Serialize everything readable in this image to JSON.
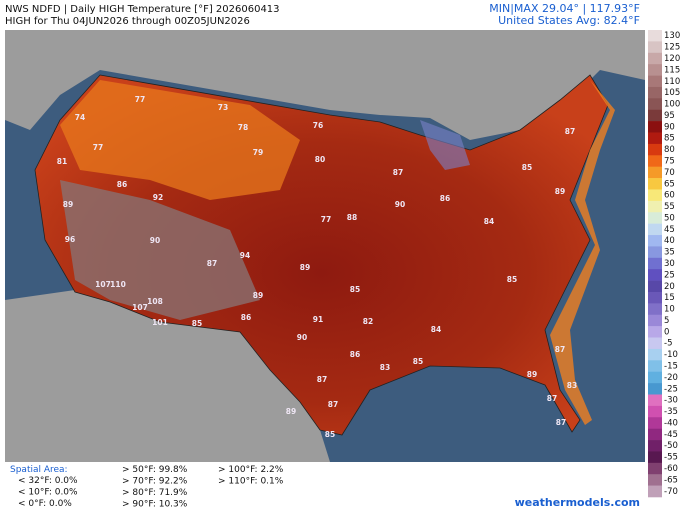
{
  "header": {
    "left_lines": [
      "NWS NDFD | Daily HIGH Temperature [°F]  2026060413",
      "HIGH for Thu 04JUN2026 through 00Z05JUN2026"
    ],
    "right_lines": [
      "MIN|MAX 29.04° | 117.93°F",
      "United States Avg: 82.4°F"
    ]
  },
  "colorbar": {
    "ticks": [
      130,
      125,
      120,
      115,
      110,
      105,
      100,
      95,
      90,
      85,
      80,
      75,
      70,
      65,
      60,
      55,
      50,
      45,
      40,
      35,
      30,
      25,
      20,
      15,
      10,
      5,
      0,
      -5,
      -10,
      -15,
      -20,
      -25,
      -30,
      -35,
      -40,
      -45,
      -50,
      -55,
      -60,
      -65,
      -70
    ],
    "colors": [
      "#e8dcdc",
      "#d8c4c4",
      "#c8a8a8",
      "#b89090",
      "#a87878",
      "#986666",
      "#8a5555",
      "#7a3a3a",
      "#8b1010",
      "#b01a10",
      "#d83a10",
      "#f06818",
      "#f59a28",
      "#f8c840",
      "#f8e878",
      "#f0f0b0",
      "#d8ecd8",
      "#c0d8f0",
      "#a0b8f0",
      "#8898e0",
      "#7070d0",
      "#6050c0",
      "#5848a8",
      "#6a58b8",
      "#8070c8",
      "#9a88d8",
      "#b8a8e8",
      "#c8c8f0",
      "#a8d0f0",
      "#80c0e8",
      "#60b0e0",
      "#4898d0",
      "#e070c0",
      "#d050b0",
      "#b03898",
      "#902880",
      "#702068",
      "#581850",
      "#804070",
      "#a07090",
      "#c0a0b8"
    ]
  },
  "stats": {
    "label": "Spatial Area:",
    "columns": [
      [
        "< 32°F: 0.0%",
        "< 10°F: 0.0%",
        "< 0°F: 0.0%"
      ],
      [
        "> 50°F: 99.8%",
        "> 70°F: 92.2%",
        "> 80°F: 71.9%",
        "> 90°F: 10.3%"
      ],
      [
        "> 100°F: 2.2%",
        "> 110°F: 0.1%"
      ]
    ]
  },
  "stations": {
    "values": [
      74,
      77,
      81,
      89,
      96,
      107,
      110,
      108,
      107,
      101,
      90,
      92,
      86,
      87,
      94,
      89,
      85,
      86,
      90,
      91,
      87,
      87,
      85,
      89,
      82,
      86,
      84,
      83,
      85,
      89,
      83,
      87,
      87,
      85,
      89,
      88,
      90,
      86,
      84,
      85,
      89,
      87,
      76,
      80,
      77,
      73,
      78,
      77,
      79,
      87,
      85,
      87
    ]
  },
  "credit": "weathermodels.com"
}
